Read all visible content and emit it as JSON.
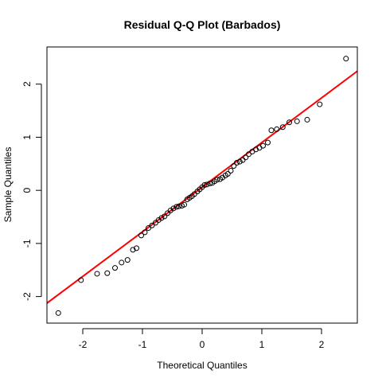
{
  "chart_data": {
    "type": "scatter",
    "title": "Residual Q-Q Plot (Barbados)",
    "xlabel": "Theoretical Quantiles",
    "ylabel": "Sample Quantiles",
    "xlim": [
      -2.6,
      2.6
    ],
    "ylim": [
      -2.5,
      2.7
    ],
    "xticks": [
      -2,
      -1,
      0,
      1,
      2
    ],
    "yticks": [
      -2,
      -1,
      0,
      1,
      2
    ],
    "grid": false,
    "point_color": "#000000",
    "line_color": "#ff0000",
    "reference_line": {
      "intercept": 0.06,
      "slope": 0.84
    },
    "points": [
      {
        "x": -2.41,
        "y": -2.31
      },
      {
        "x": -2.03,
        "y": -1.69
      },
      {
        "x": -1.76,
        "y": -1.57
      },
      {
        "x": -1.59,
        "y": -1.56
      },
      {
        "x": -1.46,
        "y": -1.46
      },
      {
        "x": -1.35,
        "y": -1.36
      },
      {
        "x": -1.25,
        "y": -1.31
      },
      {
        "x": -1.16,
        "y": -1.12
      },
      {
        "x": -1.1,
        "y": -1.09
      },
      {
        "x": -1.02,
        "y": -0.85
      },
      {
        "x": -0.96,
        "y": -0.79
      },
      {
        "x": -0.9,
        "y": -0.71
      },
      {
        "x": -0.84,
        "y": -0.66
      },
      {
        "x": -0.78,
        "y": -0.61
      },
      {
        "x": -0.73,
        "y": -0.56
      },
      {
        "x": -0.68,
        "y": -0.52
      },
      {
        "x": -0.63,
        "y": -0.49
      },
      {
        "x": -0.58,
        "y": -0.43
      },
      {
        "x": -0.53,
        "y": -0.38
      },
      {
        "x": -0.48,
        "y": -0.34
      },
      {
        "x": -0.43,
        "y": -0.31
      },
      {
        "x": -0.39,
        "y": -0.3
      },
      {
        "x": -0.34,
        "y": -0.29
      },
      {
        "x": -0.3,
        "y": -0.27
      },
      {
        "x": -0.25,
        "y": -0.17
      },
      {
        "x": -0.21,
        "y": -0.14
      },
      {
        "x": -0.17,
        "y": -0.11
      },
      {
        "x": -0.13,
        "y": -0.07
      },
      {
        "x": -0.08,
        "y": -0.02
      },
      {
        "x": -0.04,
        "y": 0.02
      },
      {
        "x": 0.0,
        "y": 0.06
      },
      {
        "x": 0.04,
        "y": 0.1
      },
      {
        "x": 0.08,
        "y": 0.11
      },
      {
        "x": 0.13,
        "y": 0.13
      },
      {
        "x": 0.17,
        "y": 0.14
      },
      {
        "x": 0.21,
        "y": 0.17
      },
      {
        "x": 0.25,
        "y": 0.2
      },
      {
        "x": 0.3,
        "y": 0.21
      },
      {
        "x": 0.34,
        "y": 0.24
      },
      {
        "x": 0.39,
        "y": 0.28
      },
      {
        "x": 0.43,
        "y": 0.31
      },
      {
        "x": 0.48,
        "y": 0.37
      },
      {
        "x": 0.53,
        "y": 0.46
      },
      {
        "x": 0.58,
        "y": 0.52
      },
      {
        "x": 0.63,
        "y": 0.54
      },
      {
        "x": 0.68,
        "y": 0.57
      },
      {
        "x": 0.73,
        "y": 0.62
      },
      {
        "x": 0.78,
        "y": 0.68
      },
      {
        "x": 0.84,
        "y": 0.73
      },
      {
        "x": 0.9,
        "y": 0.77
      },
      {
        "x": 0.96,
        "y": 0.8
      },
      {
        "x": 1.02,
        "y": 0.84
      },
      {
        "x": 1.1,
        "y": 0.9
      },
      {
        "x": 1.16,
        "y": 1.13
      },
      {
        "x": 1.25,
        "y": 1.15
      },
      {
        "x": 1.35,
        "y": 1.19
      },
      {
        "x": 1.46,
        "y": 1.28
      },
      {
        "x": 1.59,
        "y": 1.3
      },
      {
        "x": 1.76,
        "y": 1.33
      },
      {
        "x": 1.97,
        "y": 1.62
      },
      {
        "x": 2.41,
        "y": 2.48
      }
    ]
  }
}
